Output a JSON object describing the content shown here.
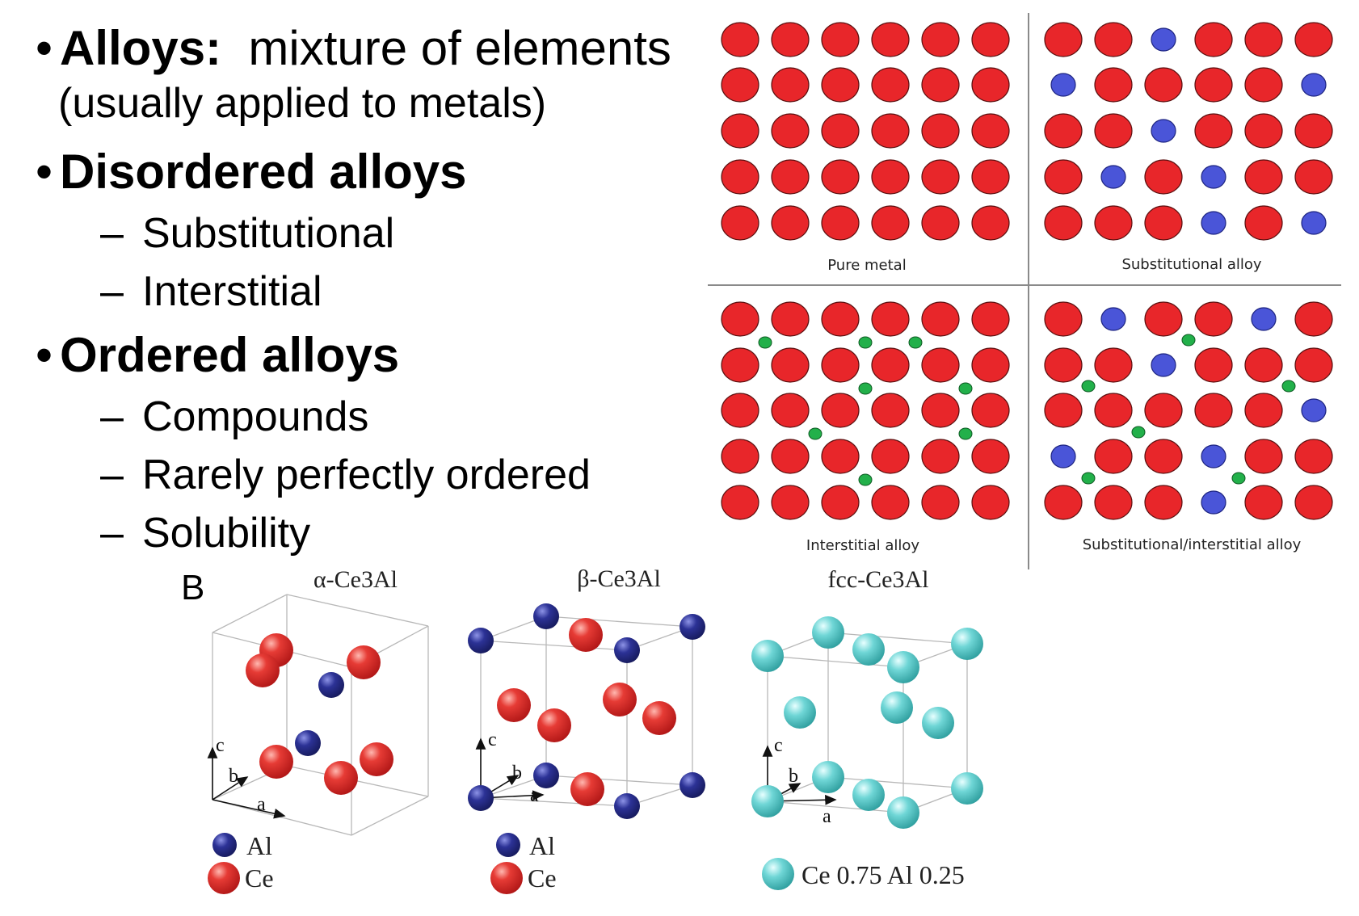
{
  "bullets": {
    "alloys_head": "Alloys:",
    "alloys_text": "mixture of elements",
    "alloys_note": "(usually applied to metals)",
    "disordered_head": "Disordered alloys",
    "disordered_items": [
      "Substitutional",
      "Interstitial"
    ],
    "ordered_head": "Ordered alloys",
    "ordered_items": [
      "Compounds",
      "Rarely perfectly ordered",
      "Solubility"
    ]
  },
  "lattice_panels": {
    "pure": "Pure metal",
    "substitutional": "Substitutional alloy",
    "interstitial": "Interstitial alloy",
    "combined": "Substitutional/interstitial alloy"
  },
  "colors": {
    "host_atom": "#e8262a",
    "substitute_atom": "#4a55d8",
    "interstitial_atom": "#22b04a",
    "al_atom": "#2a2f9a",
    "ce_atom": "#e03232",
    "mixed_atom": "#5ed3d3"
  },
  "crystals": {
    "panel_label": "B",
    "alpha": {
      "title": "α-Ce3Al",
      "axis_c": "c",
      "axis_b": "b",
      "axis_a": "a"
    },
    "beta": {
      "title": "β-Ce3Al",
      "axis_c": "c",
      "axis_b": "b",
      "axis_a": "a"
    },
    "fcc": {
      "title": "fcc-Ce3Al",
      "axis_c": "c",
      "axis_b": "b",
      "axis_a": "a"
    },
    "legend": {
      "al": "Al",
      "ce": "Ce",
      "mixed": "Ce 0.75 Al 0.25"
    }
  }
}
